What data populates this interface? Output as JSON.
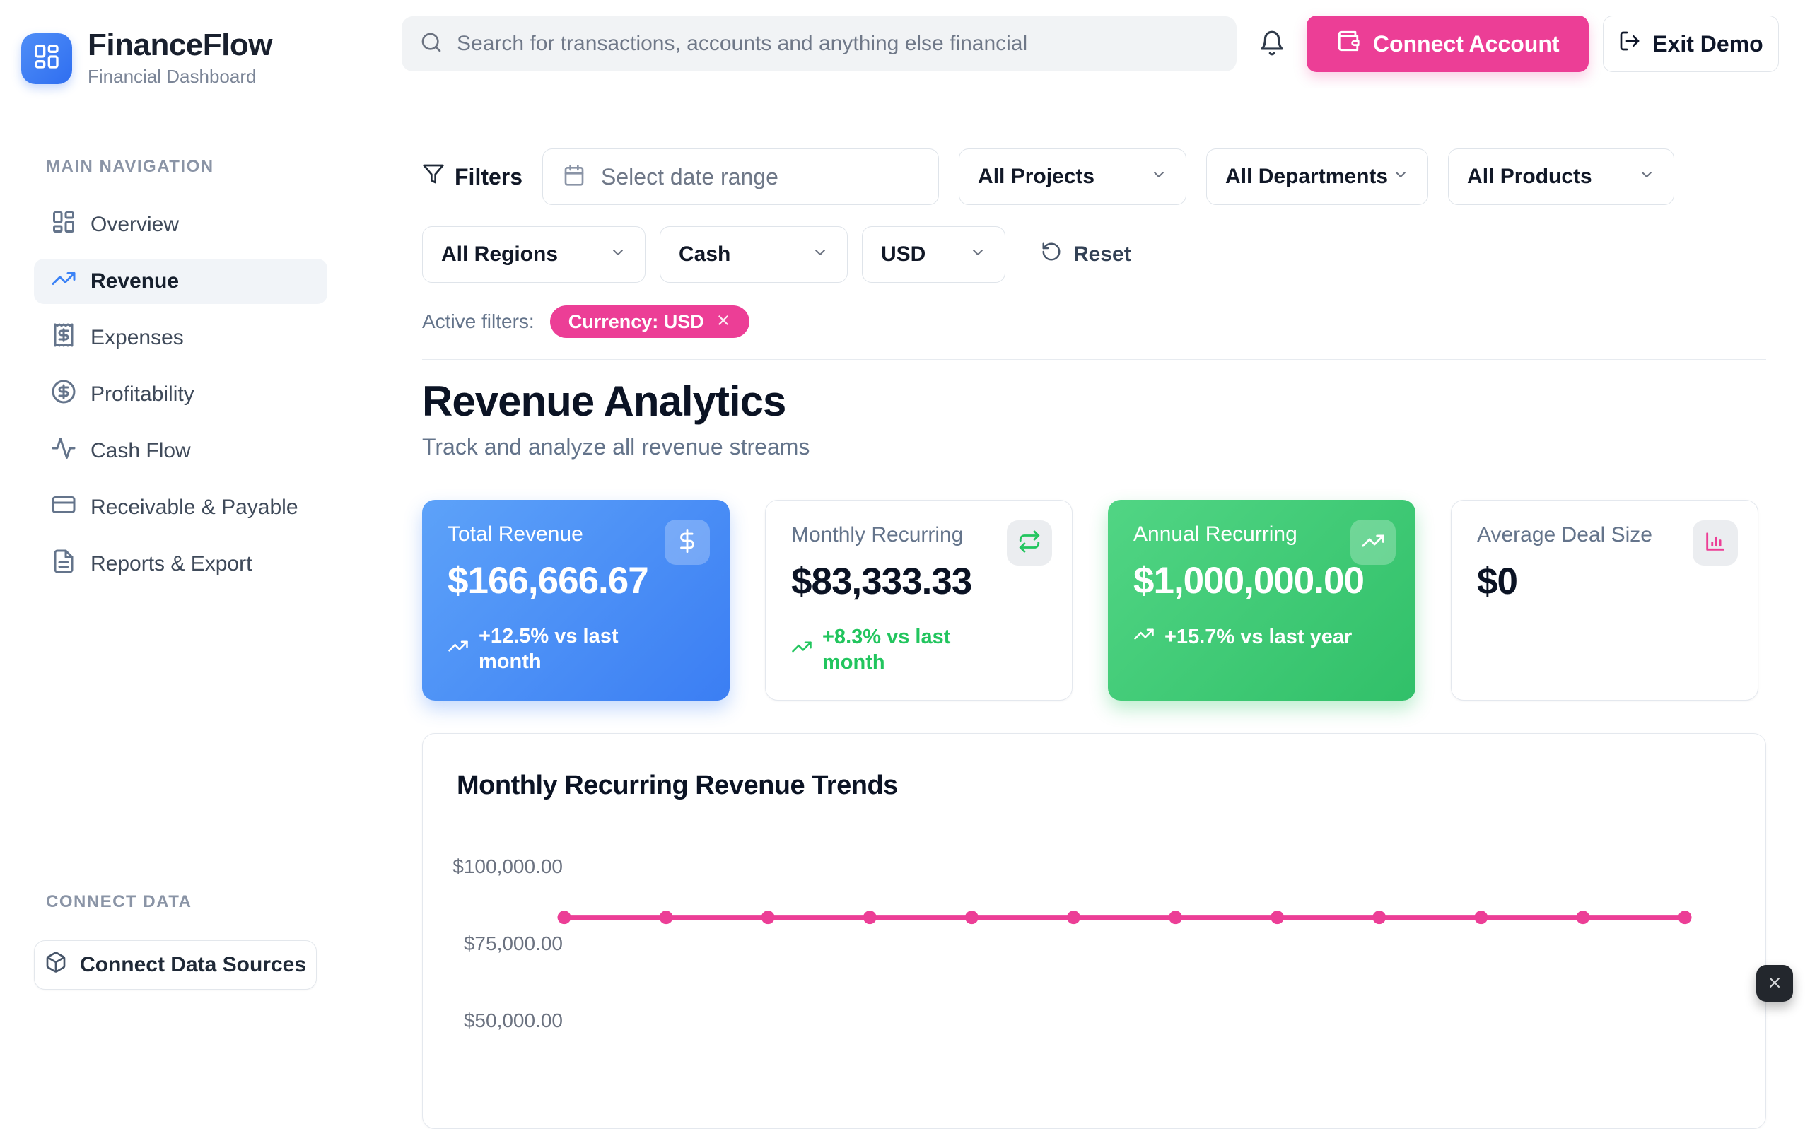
{
  "brand": {
    "name": "FinanceFlow",
    "subtitle": "Financial Dashboard"
  },
  "header": {
    "search_placeholder": "Search for transactions, accounts and anything else financial",
    "connect_account_label": "Connect Account",
    "exit_demo_label": "Exit Demo"
  },
  "sidebar": {
    "nav_section_label": "MAIN NAVIGATION",
    "items": [
      {
        "label": "Overview",
        "icon": "dashboard-icon",
        "active": false
      },
      {
        "label": "Revenue",
        "icon": "trending-up-icon",
        "active": true
      },
      {
        "label": "Expenses",
        "icon": "receipt-icon",
        "active": false
      },
      {
        "label": "Profitability",
        "icon": "circle-dollar-icon",
        "active": false
      },
      {
        "label": "Cash Flow",
        "icon": "activity-icon",
        "active": false
      },
      {
        "label": "Receivable & Payable",
        "icon": "credit-card-icon",
        "active": false
      },
      {
        "label": "Reports & Export",
        "icon": "file-text-icon",
        "active": false
      }
    ],
    "connect_section_label": "CONNECT DATA",
    "connect_button_label": "Connect Data Sources"
  },
  "filters": {
    "title": "Filters",
    "date_range_placeholder": "Select date range",
    "dropdowns": [
      "All Projects",
      "All Departments",
      "All Products",
      "All Regions",
      "Cash",
      "USD"
    ],
    "reset_label": "Reset",
    "active_filters_label": "Active filters:",
    "active_filter_chip": "Currency: USD"
  },
  "page": {
    "title": "Revenue Analytics",
    "subtitle": "Track and analyze all revenue streams"
  },
  "kpi_cards": [
    {
      "label": "Total Revenue",
      "value": "$166,666.67",
      "delta": "+12.5% vs last month",
      "style": "blue",
      "icon": "dollar-sign-icon"
    },
    {
      "label": "Monthly Recurring",
      "value": "$83,333.33",
      "delta": "+8.3% vs last month",
      "style": "white",
      "icon": "repeat-icon"
    },
    {
      "label": "Annual Recurring",
      "value": "$1,000,000.00",
      "delta": "+15.7% vs last year",
      "style": "green",
      "icon": "trending-up-icon"
    },
    {
      "label": "Average Deal Size",
      "value": "$0",
      "delta": "",
      "style": "white",
      "icon": "bar-chart-icon"
    }
  ],
  "chart_data": {
    "type": "line",
    "title": "Monthly Recurring Revenue Trends",
    "series": [
      {
        "name": "Monthly Recurring Revenue",
        "values": [
          83333.33,
          83333.33,
          83333.33,
          83333.33,
          83333.33,
          83333.33,
          83333.33,
          83333.33,
          83333.33,
          83333.33,
          83333.33,
          83333.33
        ]
      }
    ],
    "y_ticks": [
      {
        "label": "$100,000.00",
        "value": 100000
      },
      {
        "label": "$75,000.00",
        "value": 75000
      },
      {
        "label": "$50,000.00",
        "value": 50000
      }
    ],
    "line_color": "#ec3e96",
    "point_color": "#ec3e96",
    "grid": false,
    "legend": false
  },
  "colors": {
    "accent_pink": "#ec3e96",
    "accent_blue": "#3b82f6",
    "accent_green": "#22c55e"
  },
  "misc": {
    "close_button_icon": "close-icon"
  }
}
